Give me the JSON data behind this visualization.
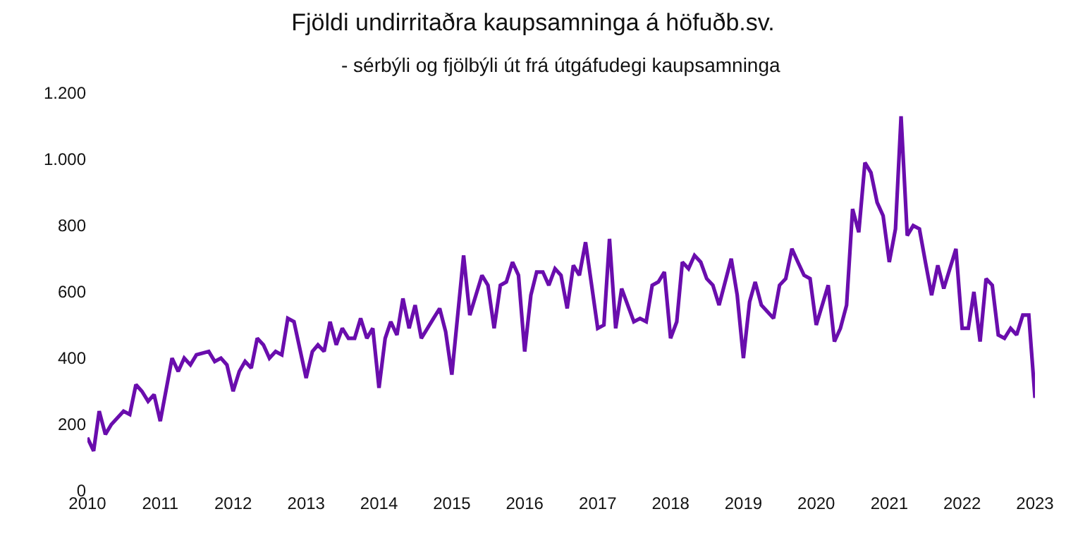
{
  "chart_data": {
    "type": "line",
    "title": "Fjöldi undirritaðra kaupsamninga á höfuðb.sv.",
    "subtitle": "- sérbýli og fjölbýli út frá útgáfudegi kaupsamninga",
    "x": [
      "2010-01",
      "2010-02",
      "2010-03",
      "2010-04",
      "2010-05",
      "2010-06",
      "2010-07",
      "2010-08",
      "2010-09",
      "2010-10",
      "2010-11",
      "2010-12",
      "2011-01",
      "2011-03",
      "2011-04",
      "2011-05",
      "2011-06",
      "2011-07",
      "2011-09",
      "2011-10",
      "2011-11",
      "2011-12",
      "2012-01",
      "2012-02",
      "2012-03",
      "2012-04",
      "2012-05",
      "2012-06",
      "2012-07",
      "2012-08",
      "2012-09",
      "2012-10",
      "2012-11",
      "2013-01",
      "2013-02",
      "2013-03",
      "2013-04",
      "2013-05",
      "2013-06",
      "2013-07",
      "2013-08",
      "2013-09",
      "2013-10",
      "2013-11",
      "2013-12",
      "2014-01",
      "2014-02",
      "2014-03",
      "2014-04",
      "2014-05",
      "2014-06",
      "2014-07",
      "2014-08",
      "2014-09",
      "2014-10",
      "2014-11",
      "2014-12",
      "2015-01",
      "2015-03",
      "2015-04",
      "2015-06",
      "2015-07",
      "2015-08",
      "2015-09",
      "2015-10",
      "2015-11",
      "2015-12",
      "2016-01",
      "2016-02",
      "2016-03",
      "2016-04",
      "2016-05",
      "2016-06",
      "2016-07",
      "2016-08",
      "2016-09",
      "2016-10",
      "2016-11",
      "2017-01",
      "2017-02",
      "2017-03",
      "2017-04",
      "2017-05",
      "2017-07",
      "2017-08",
      "2017-09",
      "2017-10",
      "2017-11",
      "2017-12",
      "2018-01",
      "2018-02",
      "2018-03",
      "2018-04",
      "2018-05",
      "2018-06",
      "2018-07",
      "2018-08",
      "2018-09",
      "2018-11",
      "2018-12",
      "2019-01",
      "2019-02",
      "2019-03",
      "2019-04",
      "2019-06",
      "2019-07",
      "2019-08",
      "2019-09",
      "2019-10",
      "2019-11",
      "2019-12",
      "2020-01",
      "2020-03",
      "2020-04",
      "2020-05",
      "2020-06",
      "2020-07",
      "2020-08",
      "2020-09",
      "2020-10",
      "2020-11",
      "2020-12",
      "2021-01",
      "2021-02",
      "2021-03",
      "2021-04",
      "2021-05",
      "2021-06",
      "2021-07",
      "2021-08",
      "2021-09",
      "2021-10",
      "2021-12",
      "2022-01",
      "2022-02",
      "2022-03",
      "2022-04",
      "2022-05",
      "2022-06",
      "2022-07",
      "2022-08",
      "2022-09",
      "2022-10",
      "2022-11",
      "2022-12",
      "2023-01"
    ],
    "series": [
      {
        "color": "#6a0dad",
        "values": [
          160,
          120,
          240,
          170,
          200,
          220,
          240,
          230,
          320,
          300,
          270,
          290,
          210,
          400,
          360,
          400,
          380,
          410,
          420,
          390,
          400,
          380,
          300,
          360,
          390,
          370,
          460,
          440,
          400,
          420,
          410,
          520,
          510,
          340,
          420,
          440,
          420,
          510,
          440,
          490,
          460,
          460,
          520,
          460,
          490,
          310,
          460,
          510,
          470,
          580,
          490,
          560,
          460,
          490,
          520,
          550,
          480,
          350,
          710,
          530,
          650,
          620,
          490,
          620,
          630,
          690,
          650,
          420,
          590,
          660,
          660,
          620,
          670,
          650,
          550,
          680,
          650,
          750,
          490,
          500,
          760,
          490,
          610,
          510,
          520,
          510,
          620,
          630,
          660,
          460,
          510,
          690,
          670,
          710,
          690,
          640,
          620,
          560,
          700,
          590,
          400,
          570,
          630,
          560,
          520,
          620,
          640,
          730,
          690,
          650,
          640,
          500,
          620,
          450,
          490,
          560,
          850,
          780,
          990,
          960,
          870,
          830,
          690,
          790,
          1130,
          770,
          800,
          790,
          690,
          590,
          680,
          610,
          730,
          490,
          490,
          600,
          450,
          640,
          620,
          470,
          460,
          490,
          470,
          530,
          530,
          280
        ]
      }
    ],
    "xlim": [
      "2010-01",
      "2023-01"
    ],
    "xticks": [
      {
        "value": "2010-01",
        "label": "2010"
      },
      {
        "value": "2011-01",
        "label": "2011"
      },
      {
        "value": "2012-01",
        "label": "2012"
      },
      {
        "value": "2013-01",
        "label": "2013"
      },
      {
        "value": "2014-01",
        "label": "2014"
      },
      {
        "value": "2015-01",
        "label": "2015"
      },
      {
        "value": "2016-01",
        "label": "2016"
      },
      {
        "value": "2017-01",
        "label": "2017"
      },
      {
        "value": "2018-01",
        "label": "2018"
      },
      {
        "value": "2019-01",
        "label": "2019"
      },
      {
        "value": "2020-01",
        "label": "2020"
      },
      {
        "value": "2021-01",
        "label": "2021"
      },
      {
        "value": "2022-01",
        "label": "2022"
      },
      {
        "value": "2023-01",
        "label": "2023"
      }
    ],
    "ylim": [
      0,
      1200
    ],
    "yticks": [
      0,
      200,
      400,
      600,
      800,
      {
        "value": 1000,
        "label": "1.000"
      },
      {
        "value": 1200,
        "label": "1.200"
      }
    ],
    "grid": false,
    "marker": "none",
    "line_style": "solid"
  }
}
